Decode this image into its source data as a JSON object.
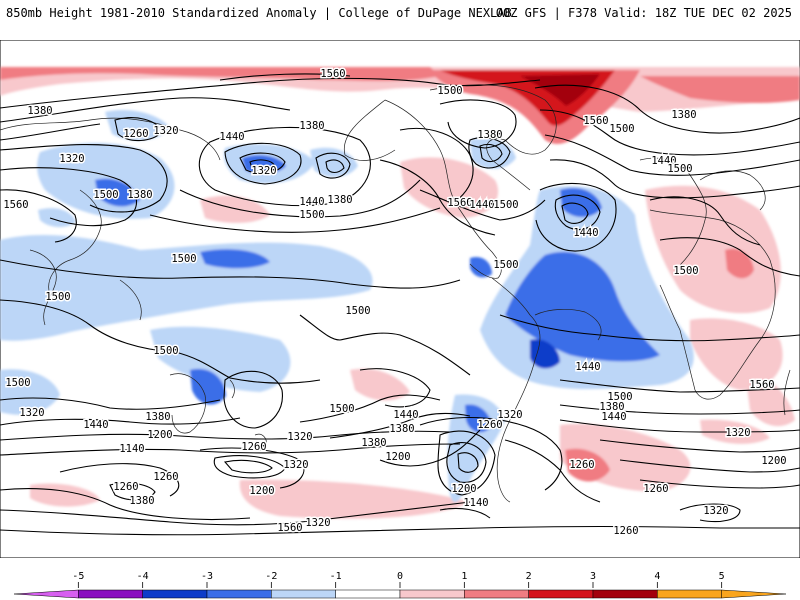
{
  "header": {
    "left": "850mb Height 1981-2010 Standardized Anomaly | College of DuPage NEXLAB",
    "right": "00Z GFS | F378 Valid: 18Z TUE DEC 02 2025"
  },
  "map": {
    "contour_labels": [
      {
        "id": "c1",
        "text": "1560"
      },
      {
        "id": "c2",
        "text": "1500"
      },
      {
        "id": "c3",
        "text": "1380"
      },
      {
        "id": "c4",
        "text": "1260"
      },
      {
        "id": "c5",
        "text": "1320"
      },
      {
        "id": "c6",
        "text": "1440"
      },
      {
        "id": "c7",
        "text": "1380"
      },
      {
        "id": "c8",
        "text": "1320"
      },
      {
        "id": "c9",
        "text": "1560"
      },
      {
        "id": "c10",
        "text": "1500"
      },
      {
        "id": "c11",
        "text": "1380"
      },
      {
        "id": "c12",
        "text": "1320"
      },
      {
        "id": "c13",
        "text": "1440"
      },
      {
        "id": "c14",
        "text": "1380"
      },
      {
        "id": "c15",
        "text": "1560"
      },
      {
        "id": "c16",
        "text": "1500"
      },
      {
        "id": "c17",
        "text": "1440"
      },
      {
        "id": "c18",
        "text": "1380"
      },
      {
        "id": "c19",
        "text": "1560"
      },
      {
        "id": "c20",
        "text": "1500"
      },
      {
        "id": "c21",
        "text": "1380"
      },
      {
        "id": "c22",
        "text": "1440"
      },
      {
        "id": "c23",
        "text": "1500"
      },
      {
        "id": "c24",
        "text": "1500"
      },
      {
        "id": "c25",
        "text": "1500"
      },
      {
        "id": "c26",
        "text": "1500"
      },
      {
        "id": "c27",
        "text": "1500"
      },
      {
        "id": "c28",
        "text": "1500"
      },
      {
        "id": "c29",
        "text": "1500"
      },
      {
        "id": "c30",
        "text": "1440"
      },
      {
        "id": "c31",
        "text": "1500"
      },
      {
        "id": "c32",
        "text": "1320"
      },
      {
        "id": "c33",
        "text": "1440"
      },
      {
        "id": "c34",
        "text": "1380"
      },
      {
        "id": "c35",
        "text": "1200"
      },
      {
        "id": "c36",
        "text": "1140"
      },
      {
        "id": "c37",
        "text": "1260"
      },
      {
        "id": "c38",
        "text": "1320"
      },
      {
        "id": "c39",
        "text": "1380"
      },
      {
        "id": "c40",
        "text": "1200"
      },
      {
        "id": "c41",
        "text": "1320"
      },
      {
        "id": "c42",
        "text": "1380"
      },
      {
        "id": "c43",
        "text": "1260"
      },
      {
        "id": "c44",
        "text": "1200"
      },
      {
        "id": "c45",
        "text": "1260"
      },
      {
        "id": "c46",
        "text": "1320"
      },
      {
        "id": "c47",
        "text": "1560"
      },
      {
        "id": "c48",
        "text": "1440"
      },
      {
        "id": "c49",
        "text": "1500"
      },
      {
        "id": "c50",
        "text": "1380"
      },
      {
        "id": "c51",
        "text": "1320"
      },
      {
        "id": "c52",
        "text": "1260"
      },
      {
        "id": "c53",
        "text": "1200"
      },
      {
        "id": "c54",
        "text": "1140"
      },
      {
        "id": "c55",
        "text": "1260"
      },
      {
        "id": "c56",
        "text": "1380"
      },
      {
        "id": "c57",
        "text": "1500"
      },
      {
        "id": "c58",
        "text": "1440"
      },
      {
        "id": "c59",
        "text": "1320"
      },
      {
        "id": "c60",
        "text": "1260"
      },
      {
        "id": "c61",
        "text": "1200"
      },
      {
        "id": "c62",
        "text": "1320"
      },
      {
        "id": "c63",
        "text": "1260"
      },
      {
        "id": "c64",
        "text": "1320"
      },
      {
        "id": "c65",
        "text": "1560"
      },
      {
        "id": "c66",
        "text": "1500"
      },
      {
        "id": "c67",
        "text": "1440"
      }
    ]
  },
  "colorbar": {
    "ticks": [
      "-5",
      "-4",
      "-3",
      "-2",
      "-1",
      "0",
      "1",
      "2",
      "3",
      "4",
      "5"
    ],
    "colors": {
      "neg5": "#d75ff0",
      "neg4": "#8a0ec0",
      "neg3": "#0d3cc9",
      "neg2": "#3b6ee8",
      "neg1": "#bcd6f7",
      "zero": "#ffffff",
      "pos1": "#f8c8cc",
      "pos2": "#f07c82",
      "pos3": "#d4121c",
      "pos4": "#a3000c",
      "pos5": "#f9a51e"
    }
  }
}
